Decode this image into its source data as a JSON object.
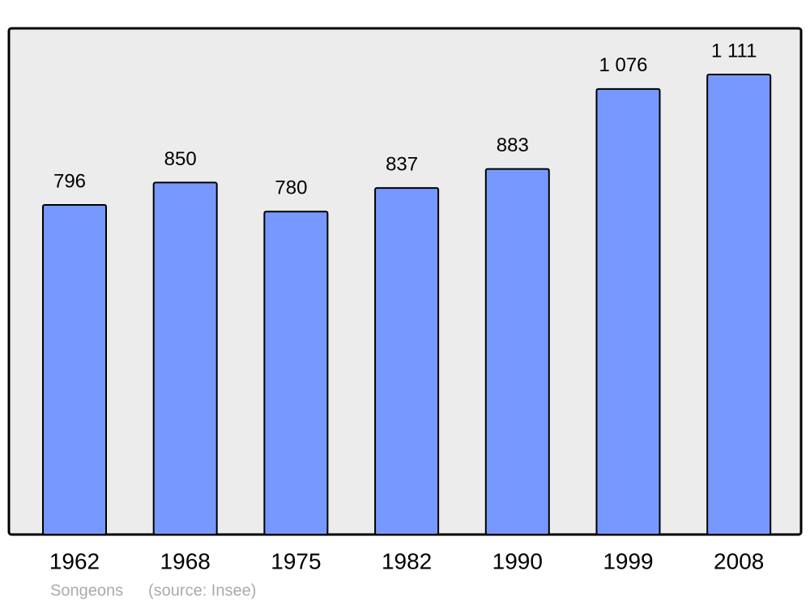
{
  "chart_data": {
    "type": "bar",
    "categories": [
      "1962",
      "1968",
      "1975",
      "1982",
      "1990",
      "1999",
      "2008"
    ],
    "values": [
      796,
      850,
      780,
      837,
      883,
      1076,
      1111
    ],
    "value_labels": [
      "796",
      "850",
      "780",
      "837",
      "883",
      "1 076",
      "1 111"
    ],
    "color": "#7799ff",
    "place": "Songeons",
    "source": "(source: Insee)"
  }
}
